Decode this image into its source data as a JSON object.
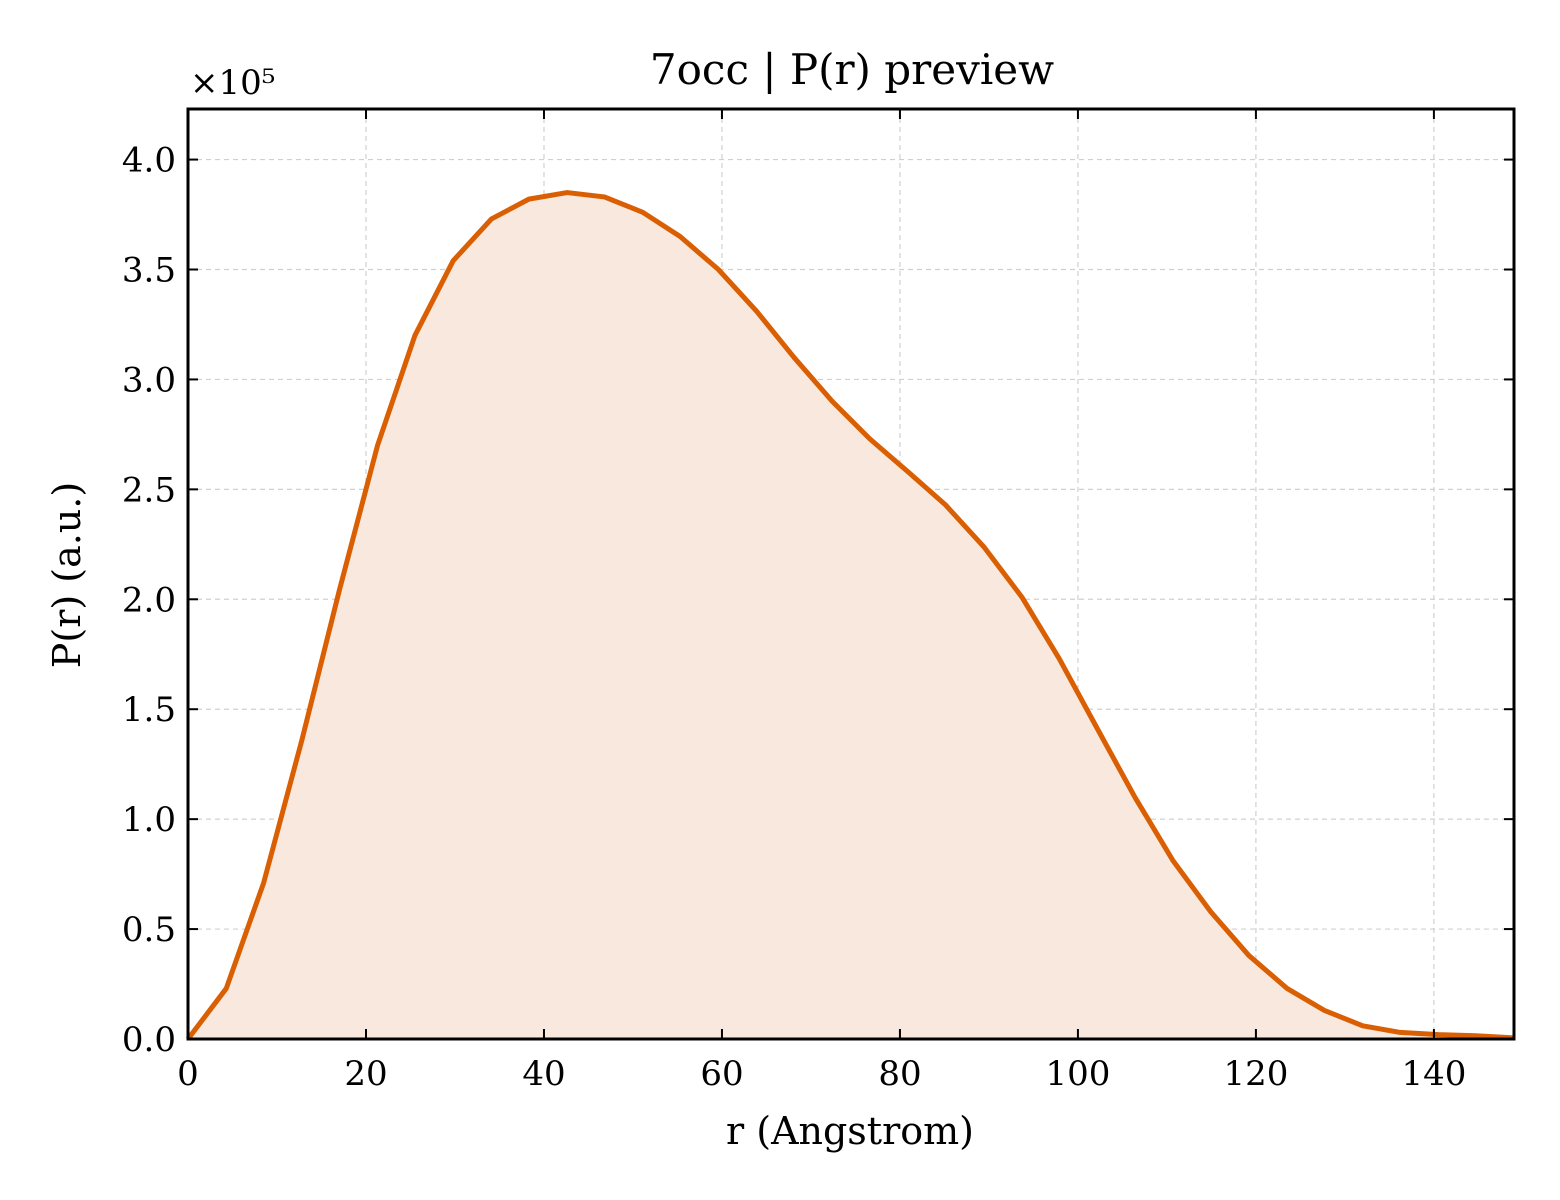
{
  "chart_data": {
    "type": "area",
    "title": "7occ | P(r) preview",
    "xlabel": "r (Angstrom)",
    "ylabel": "P(r) (a.u.)",
    "y_offset_label": "×10⁵",
    "xlim": [
      0,
      149
    ],
    "ylim": [
      0,
      4.23
    ],
    "x_ticks": [
      0,
      20,
      40,
      60,
      80,
      100,
      120,
      140
    ],
    "y_ticks": [
      0.0,
      0.5,
      1.0,
      1.5,
      2.0,
      2.5,
      3.0,
      3.5,
      4.0
    ],
    "x_tick_labels": [
      "0",
      "20",
      "40",
      "60",
      "80",
      "100",
      "120",
      "140"
    ],
    "y_tick_labels": [
      "0.0",
      "0.5",
      "1.0",
      "1.5",
      "2.0",
      "2.5",
      "3.0",
      "3.5",
      "4.0"
    ],
    "grid": true,
    "line_color": "#D95F02",
    "fill_color": "#F8E8DE",
    "series": [
      {
        "x": [
          0,
          4.3,
          8.5,
          12.8,
          17.0,
          21.3,
          25.5,
          29.8,
          34.1,
          38.3,
          42.6,
          46.8,
          51.1,
          55.3,
          59.6,
          63.9,
          68.1,
          72.4,
          76.6,
          80.9,
          85.1,
          89.4,
          93.7,
          97.9,
          102.2,
          106.4,
          110.7,
          114.9,
          119.2,
          123.5,
          127.7,
          132.0,
          136.2,
          140.5,
          144.7,
          149.0
        ],
        "values": [
          0.0,
          0.23,
          0.71,
          1.36,
          2.04,
          2.7,
          3.2,
          3.54,
          3.73,
          3.82,
          3.85,
          3.83,
          3.76,
          3.65,
          3.5,
          3.31,
          3.1,
          2.9,
          2.73,
          2.58,
          2.43,
          2.24,
          2.01,
          1.73,
          1.41,
          1.1,
          0.81,
          0.58,
          0.38,
          0.23,
          0.13,
          0.06,
          0.03,
          0.02,
          0.015,
          0.005
        ]
      }
    ]
  }
}
